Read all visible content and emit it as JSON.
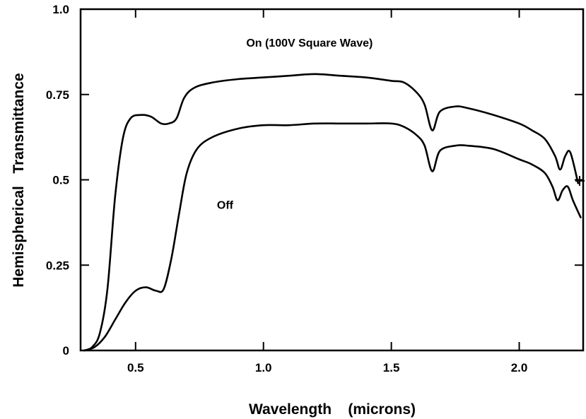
{
  "chart_data": {
    "type": "line",
    "title": "",
    "xlabel": "Wavelength    (microns)",
    "ylabel": "Hemispherical   Transmittance",
    "xlim": [
      0.285,
      2.25
    ],
    "ylim": [
      0,
      1.0
    ],
    "x_ticks": [
      0.5,
      1.0,
      1.5,
      2.0
    ],
    "x_tick_labels": [
      "0.5",
      "1.0",
      "1.5",
      "2.0"
    ],
    "y_ticks": [
      0,
      0.25,
      0.5,
      0.75,
      1.0
    ],
    "y_tick_labels": [
      "0",
      "0.25",
      "0.5",
      "0.75",
      "1.0"
    ],
    "grid": false,
    "legend": "none",
    "series": [
      {
        "name": "On (100V Square Wave)",
        "x": [
          0.3,
          0.33,
          0.36,
          0.39,
          0.42,
          0.45,
          0.48,
          0.52,
          0.56,
          0.6,
          0.63,
          0.66,
          0.69,
          0.73,
          0.8,
          0.9,
          1.0,
          1.1,
          1.2,
          1.3,
          1.4,
          1.5,
          1.55,
          1.6,
          1.63,
          1.66,
          1.69,
          1.75,
          1.8,
          1.9,
          2.0,
          2.05,
          2.1,
          2.14,
          2.16,
          2.18,
          2.2,
          2.23
        ],
        "y": [
          0.0,
          0.01,
          0.05,
          0.18,
          0.45,
          0.62,
          0.68,
          0.69,
          0.685,
          0.665,
          0.665,
          0.68,
          0.74,
          0.77,
          0.785,
          0.795,
          0.8,
          0.805,
          0.81,
          0.805,
          0.8,
          0.79,
          0.785,
          0.755,
          0.72,
          0.645,
          0.7,
          0.715,
          0.71,
          0.69,
          0.665,
          0.645,
          0.62,
          0.57,
          0.53,
          0.57,
          0.58,
          0.49
        ]
      },
      {
        "name": "Off",
        "x": [
          0.3,
          0.34,
          0.38,
          0.42,
          0.46,
          0.5,
          0.54,
          0.58,
          0.61,
          0.64,
          0.67,
          0.7,
          0.74,
          0.8,
          0.9,
          1.0,
          1.1,
          1.2,
          1.3,
          1.4,
          1.5,
          1.55,
          1.6,
          1.63,
          1.66,
          1.69,
          1.75,
          1.8,
          1.9,
          2.0,
          2.05,
          2.1,
          2.13,
          2.15,
          2.17,
          2.19,
          2.21,
          2.24
        ],
        "y": [
          0.0,
          0.01,
          0.04,
          0.09,
          0.14,
          0.175,
          0.185,
          0.175,
          0.18,
          0.27,
          0.4,
          0.52,
          0.59,
          0.625,
          0.65,
          0.66,
          0.66,
          0.665,
          0.665,
          0.665,
          0.665,
          0.655,
          0.63,
          0.6,
          0.525,
          0.585,
          0.6,
          0.6,
          0.59,
          0.56,
          0.545,
          0.52,
          0.48,
          0.44,
          0.47,
          0.48,
          0.44,
          0.39
        ]
      }
    ],
    "annotations": [
      {
        "text": "On (100V Square Wave)",
        "x": 1.18,
        "y": 0.89
      },
      {
        "text": "Off",
        "x": 0.85,
        "y": 0.415
      }
    ]
  }
}
